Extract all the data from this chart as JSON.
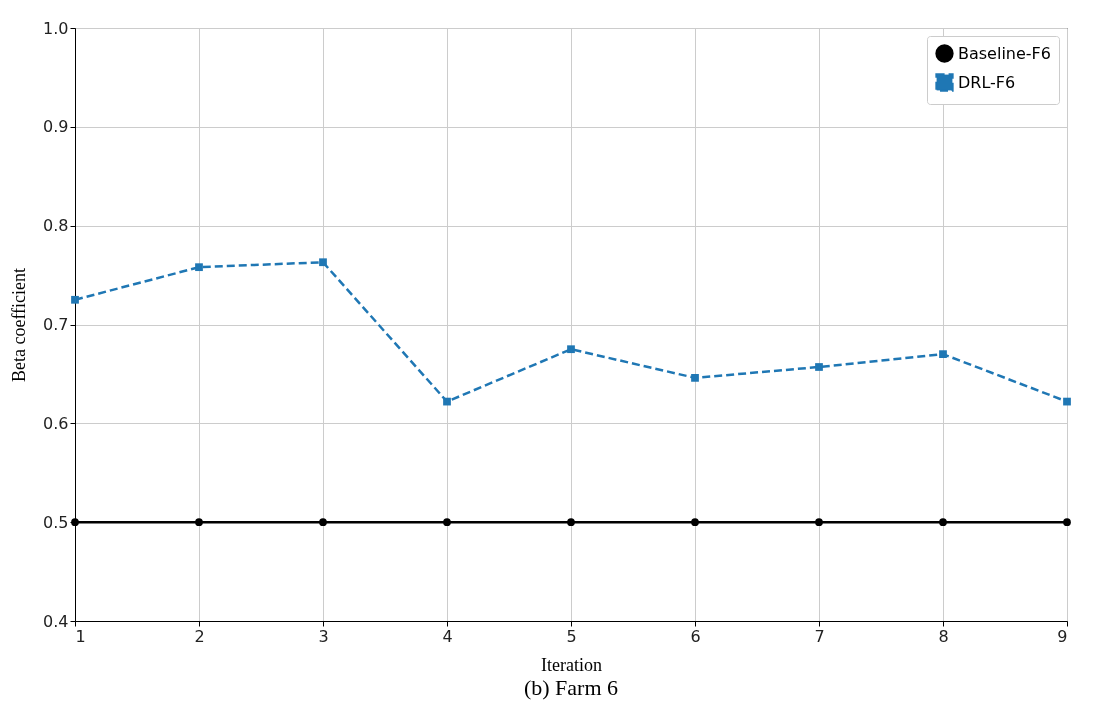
{
  "chart_data": {
    "type": "line",
    "title": "(b) Farm 6",
    "xlabel": "Iteration",
    "ylabel": "Beta coefficient",
    "x": [
      1,
      2,
      3,
      4,
      5,
      6,
      7,
      8,
      9
    ],
    "series": [
      {
        "name": "Baseline-F6",
        "color": "#000000",
        "marker": "circle",
        "line_style": "solid",
        "values": [
          0.5,
          0.5,
          0.5,
          0.5,
          0.5,
          0.5,
          0.5,
          0.5,
          0.5
        ]
      },
      {
        "name": "DRL-F6",
        "color": "#1f77b4",
        "marker": "square",
        "line_style": "dashed",
        "values": [
          0.725,
          0.758,
          0.763,
          0.622,
          0.675,
          0.646,
          0.657,
          0.67,
          0.622
        ]
      }
    ],
    "xlim": [
      1,
      9
    ],
    "xticks": [
      1,
      2,
      3,
      4,
      5,
      6,
      7,
      8,
      9
    ],
    "ylim": [
      0.4,
      1.0
    ],
    "yticks": [
      0.4,
      0.5,
      0.6,
      0.7,
      0.8,
      0.9,
      {
        "value": 1,
        "label": "1.0"
      }
    ],
    "grid": true,
    "legend": "top right"
  }
}
